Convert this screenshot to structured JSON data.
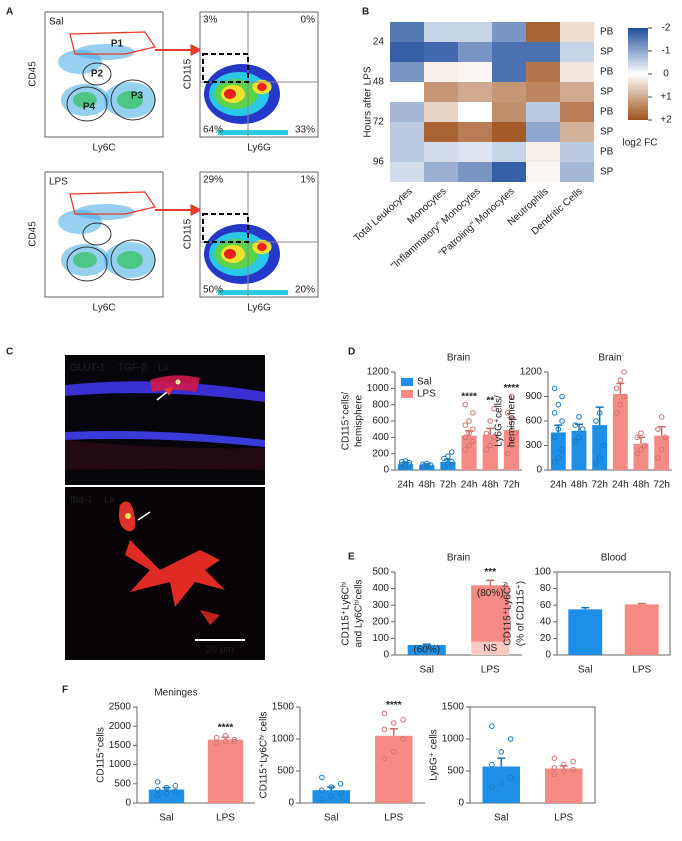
{
  "panel_labels": [
    "A",
    "B",
    "C",
    "D",
    "E",
    "F"
  ],
  "panel_a": {
    "plots": [
      {
        "group": "Sal",
        "x_label": "Ly6C",
        "y_label": "CD45",
        "gates": [
          "P1",
          "P2",
          "P3",
          "P4"
        ]
      },
      {
        "x_label": "Ly6G",
        "y_label": "CD115",
        "quadrants": [
          "3%",
          "0%",
          "64%",
          "33%"
        ]
      },
      {
        "group": "LPS",
        "x_label": "Ly6C",
        "y_label": "CD45"
      },
      {
        "x_label": "Ly6G",
        "y_label": "CD115",
        "quadrants": [
          "29%",
          "1%",
          "50%",
          "20%"
        ]
      }
    ]
  },
  "panel_c": {
    "top_stains": [
      "GLUT-1",
      "TGF-β",
      "Lx"
    ],
    "bottom_stains": [
      "Iba-1",
      "Lx"
    ],
    "scale_bar": "20 µm"
  },
  "chart_data": [
    {
      "type": "heatmap",
      "ylabel": "Hours after LPS",
      "groups": [
        24,
        48,
        72,
        96
      ],
      "rows": [
        "PB",
        "SP",
        "PB",
        "SP",
        "PB",
        "SP",
        "PB",
        "SP"
      ],
      "columns": [
        "Total Leukocytes",
        "Monocytes",
        "\"Inflammatory\" Monocytes",
        "\"Patroling\" Monocytes",
        "Neutrophils",
        "Dendritic Cells"
      ],
      "values": [
        [
          -1.5,
          -0.5,
          -0.5,
          -1.2,
          1.8,
          0.4
        ],
        [
          -1.8,
          -1.7,
          -1.2,
          -1.6,
          -1.6,
          -0.5
        ],
        [
          -1.2,
          0.2,
          0.1,
          -1.6,
          1.6,
          0.3
        ],
        [
          0,
          1.2,
          1.0,
          1.2,
          1.4,
          1.0
        ],
        [
          -0.8,
          0.5,
          0,
          1.3,
          -0.6,
          1.5
        ],
        [
          -0.6,
          1.8,
          1.5,
          1.9,
          -1.0,
          0.9
        ],
        [
          -0.6,
          -0.4,
          -0.3,
          -0.5,
          0.2,
          -0.6
        ],
        [
          -0.4,
          -0.9,
          -1.2,
          -1.8,
          0.1,
          -0.8
        ]
      ],
      "clim": [
        -2,
        2
      ],
      "cticks": [
        -2,
        -1,
        0,
        {
          "value": 1,
          "label": "+1"
        },
        {
          "value": 2,
          "label": "+2"
        }
      ],
      "colorbar_label": "log2 FC",
      "colors": [
        "#1f4e9c",
        "#ffffff",
        "#a0521c"
      ]
    },
    {
      "type": "bar",
      "title": "Brain",
      "ylabel": [
        "CD115⁺cells/",
        "hemisphere"
      ],
      "categories": [
        "24h",
        "48h",
        "72h",
        "24h",
        "48h",
        "72h"
      ],
      "ylim": [
        0,
        1200
      ],
      "yticks": [
        0,
        200,
        400,
        600,
        800,
        1000,
        1200
      ],
      "legend": "upper left",
      "series": [
        {
          "name": "Sal",
          "color": "#1e8fe6",
          "values": [
            70,
            60,
            100,
            null,
            null,
            null
          ],
          "errors": [
            20,
            15,
            30,
            null,
            null,
            null
          ],
          "points": [
            [
              30,
              50,
              60,
              70,
              80,
              90,
              100,
              110
            ],
            [
              40,
              50,
              60,
              70,
              80
            ],
            [
              40,
              80,
              100,
              140,
              170,
              220
            ],
            null,
            null,
            null
          ]
        },
        {
          "name": "LPS",
          "color": "#f58b84",
          "values": [
            null,
            null,
            null,
            420,
            430,
            490
          ],
          "errors": [
            null,
            null,
            null,
            60,
            80,
            150
          ],
          "significance": [
            null,
            null,
            null,
            "****",
            "**",
            "****"
          ],
          "points": [
            null,
            null,
            null,
            [
              250,
              300,
              350,
              400,
              450,
              500,
              550,
              600,
              700,
              800
            ],
            [
              250,
              300,
              400,
              450,
              600,
              750
            ],
            [
              200,
              300,
              450,
              700,
              900
            ]
          ]
        }
      ]
    },
    {
      "type": "bar",
      "title": "Brain",
      "ylabel": [
        "Ly6G⁺cells/",
        "hemisphere"
      ],
      "categories": [
        "24h",
        "48h",
        "72h",
        "24h",
        "48h",
        "72h"
      ],
      "ylim": [
        0,
        1200
      ],
      "yticks": [
        0,
        300,
        600,
        900,
        1200
      ],
      "series": [
        {
          "color": "#1e8fe6",
          "values": [
            460,
            480,
            550,
            null,
            null,
            null
          ],
          "errors": [
            90,
            80,
            220,
            null,
            null,
            null
          ],
          "points": [
            [
              100,
              150,
              250,
              400,
              500,
              600,
              700,
              800,
              900,
              1000
            ],
            [
              350,
              400,
              500,
              550,
              650
            ],
            [
              80,
              150,
              300,
              600,
              700
            ],
            null,
            null,
            null
          ]
        },
        {
          "color": "#f58b84",
          "values": [
            null,
            null,
            null,
            930,
            320,
            420
          ],
          "errors": [
            null,
            null,
            null,
            130,
            80,
            110
          ],
          "points": [
            null,
            null,
            null,
            [
              700,
              800,
              900,
              1000,
              1100,
              1200
            ],
            [
              200,
              250,
              300,
              400,
              450
            ],
            [
              150,
              250,
              400,
              500,
              650
            ]
          ]
        }
      ]
    },
    {
      "type": "bar",
      "title": "Brain",
      "ylabel": [
        "CD115⁺Ly6Cʰⁱ",
        "and Ly6Cʰⁱcells"
      ],
      "categories": [
        "Sal",
        "LPS"
      ],
      "ylim": [
        0,
        500
      ],
      "yticks": [
        0,
        100,
        200,
        300,
        400,
        500
      ],
      "series": [
        {
          "colors": [
            "#1e8fe6",
            "#f9c9c4"
          ],
          "values": [
            60,
            80
          ],
          "errors": [
            5,
            null
          ],
          "inner_labels": [
            "(60%)",
            "NS"
          ]
        },
        {
          "colors": [
            null,
            "#f58b84"
          ],
          "values": [
            null,
            340
          ],
          "errors": [
            null,
            30
          ],
          "inner_labels": [
            null,
            "(80%)"
          ],
          "significance": [
            null,
            "***"
          ]
        }
      ]
    },
    {
      "type": "bar",
      "title": "Blood",
      "ylabel": [
        "CD115⁺Ly6Cʰⁱ",
        "(% of CD115⁺)"
      ],
      "categories": [
        "Sal",
        "LPS"
      ],
      "ylim": [
        0,
        100
      ],
      "yticks": [
        0,
        20,
        40,
        60,
        80,
        100
      ],
      "frame": true,
      "series": [
        {
          "colors": [
            "#1e8fe6",
            "#f58b84"
          ],
          "values": [
            55,
            61
          ],
          "errors": [
            2,
            1
          ]
        }
      ]
    },
    {
      "type": "bar",
      "title": "Meninges",
      "ylabel": [
        "CD115⁺cells"
      ],
      "categories": [
        "Sal",
        "LPS"
      ],
      "ylim": [
        0,
        2500
      ],
      "yticks": [
        0,
        500,
        1000,
        1500,
        2000,
        2500
      ],
      "series": [
        {
          "colors": [
            "#1e8fe6",
            "#f58b84"
          ],
          "values": [
            350,
            1650
          ],
          "errors": [
            50,
            60
          ],
          "significance": [
            null,
            "****"
          ],
          "points": [
            [
              200,
              250,
              300,
              350,
              400,
              450,
              550
            ],
            [
              1550,
              1600,
              1650,
              1700,
              1750,
              1600
            ]
          ]
        }
      ]
    },
    {
      "type": "bar",
      "ylabel": [
        "CD115⁺Ly6Cʰⁱ cells"
      ],
      "categories": [
        "Sal",
        "LPS"
      ],
      "ylim": [
        0,
        1500
      ],
      "yticks": [
        0,
        500,
        1000,
        1500
      ],
      "series": [
        {
          "colors": [
            "#1e8fe6",
            "#f58b84"
          ],
          "values": [
            200,
            1050
          ],
          "errors": [
            50,
            110
          ],
          "significance": [
            null,
            "****"
          ],
          "points": [
            [
              50,
              100,
              150,
              200,
              250,
              300,
              400
            ],
            [
              700,
              800,
              1000,
              1150,
              1250,
              1300,
              1400
            ]
          ]
        }
      ]
    },
    {
      "type": "bar",
      "ylabel": [
        "Ly6G⁺ cells"
      ],
      "categories": [
        "Sal",
        "LPS"
      ],
      "ylim": [
        0,
        1500
      ],
      "yticks": [
        0,
        500,
        1000,
        1500
      ],
      "frame": true,
      "series": [
        {
          "colors": [
            "#1e8fe6",
            "#f58b84"
          ],
          "values": [
            570,
            540
          ],
          "errors": [
            130,
            40
          ],
          "points": [
            [
              250,
              300,
              400,
              600,
              800,
              1000,
              1200
            ],
            [
              450,
              500,
              520,
              550,
              600,
              650,
              700
            ]
          ]
        }
      ]
    }
  ]
}
